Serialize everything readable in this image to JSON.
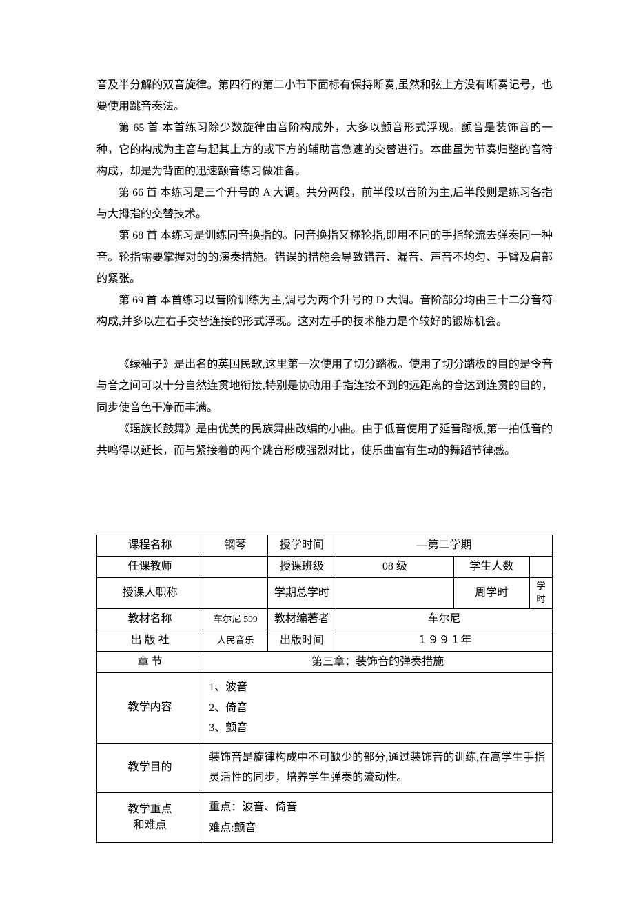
{
  "paragraphs": {
    "p0": "音及半分解的双音旋律。第四行的第二小节下面标有保持断奏,虽然和弦上方没有断奏记号，也要使用跳音奏法。",
    "p1": "第 65 首  本首练习除少数旋律由音阶构成外，大多以颤音形式浮现。颤音是装饰音的一种，它的构成为主音与起其上方的或下方的辅助音急速的交替进行。本曲虽为节奏归整的音符构成，却是为背面的迅速颤音练习做准备。",
    "p2": "第 66 首   本练习是三个升号的 A  大调。共分两段，前半段以音阶为主,后半段则是练习各指与大拇指的交替技术。",
    "p3": "第 68 首  本练习是训练同音换指的。同音换指又称轮指,即用不同的手指轮流去弹奏同一种音。轮指需要掌握对的的演奏措施。错误的措施会导致错音、漏音、声音不均匀、手臂及肩部的紧张。",
    "p4": "第 69 首   本首练习以音阶训练为主,调号为两个升号的 D 大调。音阶部分均由三十二分音符构成,并多以左右手交替连接的形式浮现。这对左手的技术能力是个较好的锻炼机会。",
    "p5": "《绿袖子》是出名的英国民歌,这里第一次使用了切分踏板。使用了切分踏板的目的是令音与音之间可以十分自然连贯地衔接,特别是协助用手指连接不到的远距离的音达到连贯的目的，同步使音色干净而丰满。",
    "p6": "《瑶族长鼓舞》是由优美的民族舞曲改编的小曲。由于低音使用了延音踏板,第一拍低音的共鸣得以延长，而与紧接着的两个跳音形成强烈对比，使乐曲富有生动的舞蹈节律感。"
  },
  "table": {
    "row1": {
      "c1": "课程名称",
      "c2": "钢琴",
      "c3": "授学时间",
      "c4": "—第二学期"
    },
    "row2": {
      "c1": "任课教师",
      "c2": "",
      "c3": "授课班级",
      "c4": "08 级",
      "c5": "学生人数",
      "c6": ""
    },
    "row3": {
      "c1": "授课人职称",
      "c2": "",
      "c3": "学期总学时",
      "c4": "",
      "c5": "周学时",
      "c6": "学时"
    },
    "row4": {
      "c1": "教材名称",
      "c2": "车尔尼 599",
      "c3": "教材编著者",
      "c4": "车尔尼"
    },
    "row5": {
      "c1": "出 版 社",
      "c2": "人民音乐",
      "c3": "出版时间",
      "c4": "１９９１年"
    },
    "row6": {
      "c1": "章      节",
      "c2": "第三章：装饰音的弹奏措施"
    },
    "row7": {
      "c1": "教学内容",
      "c2": "1、波音\n2、倚音\n3、颤音"
    },
    "row8": {
      "c1": "教学目的",
      "c2": "      装饰音是旋律构成中不可缺少的部分,通过装饰音的训练,在高学生手指灵活性的同步，培养学生弹奏的流动性。"
    },
    "row9": {
      "c1": "教学重点\n和难点",
      "c2": "重点：波音、倚音\n难点:颤音"
    }
  }
}
